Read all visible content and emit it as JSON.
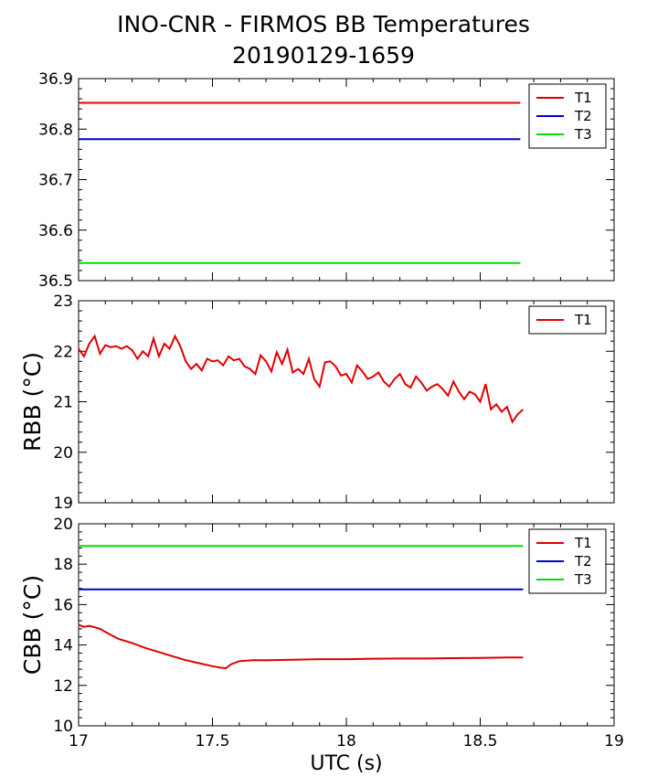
{
  "title_line_1": "INO-CNR - FIRMOS BB Temperatures",
  "title_line_2": "20190129-1659",
  "colors": {
    "T1": "#e00000",
    "T2": "#0000d0",
    "T3": "#00dd00"
  },
  "chart_data": [
    {
      "type": "line",
      "xlabel": "",
      "ylabel": "",
      "xlim": [
        17,
        19
      ],
      "ylim": [
        36.5,
        36.9
      ],
      "yticks": [
        "36.5",
        "36.6",
        "36.7",
        "36.8",
        "36.9"
      ],
      "show_xtick_labels": false,
      "legend": "top-right",
      "series": [
        {
          "name": "T1",
          "color": "#e00000",
          "x": [
            17.0,
            18.65
          ],
          "y": [
            36.852,
            36.852
          ]
        },
        {
          "name": "T2",
          "color": "#0000d0",
          "x": [
            17.0,
            18.65
          ],
          "y": [
            36.78,
            36.78
          ]
        },
        {
          "name": "T3",
          "color": "#00dd00",
          "x": [
            17.0,
            18.65
          ],
          "y": [
            36.535,
            36.535
          ]
        }
      ]
    },
    {
      "type": "line",
      "xlabel": "",
      "ylabel": "RBB (°C)",
      "xlim": [
        17,
        19
      ],
      "ylim": [
        19,
        23
      ],
      "yticks": [
        "19",
        "20",
        "21",
        "22",
        "23"
      ],
      "show_xtick_labels": false,
      "legend": "top-right",
      "series": [
        {
          "name": "T1",
          "color": "#e00000",
          "x": [
            17.0,
            17.02,
            17.04,
            17.06,
            17.08,
            17.1,
            17.12,
            17.14,
            17.16,
            17.18,
            17.2,
            17.22,
            17.24,
            17.26,
            17.28,
            17.3,
            17.32,
            17.34,
            17.36,
            17.38,
            17.4,
            17.42,
            17.44,
            17.46,
            17.48,
            17.5,
            17.52,
            17.54,
            17.56,
            17.58,
            17.6,
            17.62,
            17.64,
            17.66,
            17.68,
            17.7,
            17.72,
            17.74,
            17.76,
            17.78,
            17.8,
            17.82,
            17.84,
            17.86,
            17.88,
            17.9,
            17.92,
            17.94,
            17.96,
            17.98,
            18.0,
            18.02,
            18.04,
            18.06,
            18.08,
            18.1,
            18.12,
            18.14,
            18.16,
            18.18,
            18.2,
            18.22,
            18.24,
            18.26,
            18.28,
            18.3,
            18.32,
            18.34,
            18.36,
            18.38,
            18.4,
            18.42,
            18.44,
            18.46,
            18.48,
            18.5,
            18.52,
            18.54,
            18.56,
            18.58,
            18.6,
            18.62,
            18.64,
            18.66
          ],
          "y": [
            22.05,
            21.9,
            22.15,
            22.3,
            21.95,
            22.12,
            22.08,
            22.1,
            22.05,
            22.1,
            22.02,
            21.85,
            22.0,
            21.9,
            22.25,
            21.9,
            22.15,
            22.05,
            22.3,
            22.1,
            21.8,
            21.65,
            21.75,
            21.62,
            21.85,
            21.8,
            21.82,
            21.72,
            21.9,
            21.82,
            21.85,
            21.7,
            21.65,
            21.55,
            21.92,
            21.8,
            21.6,
            21.98,
            21.75,
            22.03,
            21.58,
            21.65,
            21.55,
            21.85,
            21.45,
            21.3,
            21.78,
            21.8,
            21.7,
            21.52,
            21.55,
            21.38,
            21.72,
            21.6,
            21.45,
            21.5,
            21.58,
            21.4,
            21.3,
            21.45,
            21.55,
            21.35,
            21.28,
            21.5,
            21.38,
            21.22,
            21.3,
            21.35,
            21.25,
            21.12,
            21.4,
            21.2,
            21.05,
            21.2,
            21.15,
            21.0,
            21.35,
            20.85,
            20.95,
            20.8,
            20.9,
            20.6,
            20.75,
            20.85
          ]
        }
      ]
    },
    {
      "type": "line",
      "xlabel": "UTC (s)",
      "ylabel": "CBB (°C)",
      "xlim": [
        17,
        19
      ],
      "ylim": [
        10,
        20
      ],
      "yticks": [
        "10",
        "12",
        "14",
        "16",
        "18",
        "20"
      ],
      "xticks": [
        "17",
        "17.5",
        "18",
        "18.5",
        "19"
      ],
      "show_xtick_labels": true,
      "legend": "top-right",
      "series": [
        {
          "name": "T1",
          "color": "#e00000",
          "x": [
            17.0,
            17.02,
            17.04,
            17.06,
            17.08,
            17.1,
            17.12,
            17.15,
            17.2,
            17.25,
            17.3,
            17.35,
            17.4,
            17.45,
            17.5,
            17.53,
            17.55,
            17.57,
            17.6,
            17.65,
            17.7,
            17.8,
            17.9,
            18.0,
            18.1,
            18.2,
            18.3,
            18.4,
            18.5,
            18.6,
            18.66
          ],
          "y": [
            15.0,
            14.9,
            14.95,
            14.88,
            14.8,
            14.65,
            14.5,
            14.3,
            14.1,
            13.85,
            13.65,
            13.45,
            13.25,
            13.1,
            12.95,
            12.88,
            12.85,
            13.05,
            13.2,
            13.25,
            13.25,
            13.27,
            13.3,
            13.3,
            13.32,
            13.33,
            13.33,
            13.35,
            13.36,
            13.38,
            13.38
          ]
        },
        {
          "name": "T2",
          "color": "#0000d0",
          "x": [
            17.0,
            18.66
          ],
          "y": [
            16.75,
            16.75
          ]
        },
        {
          "name": "T3",
          "color": "#00dd00",
          "x": [
            17.0,
            18.66
          ],
          "y": [
            18.9,
            18.9
          ]
        }
      ]
    }
  ]
}
